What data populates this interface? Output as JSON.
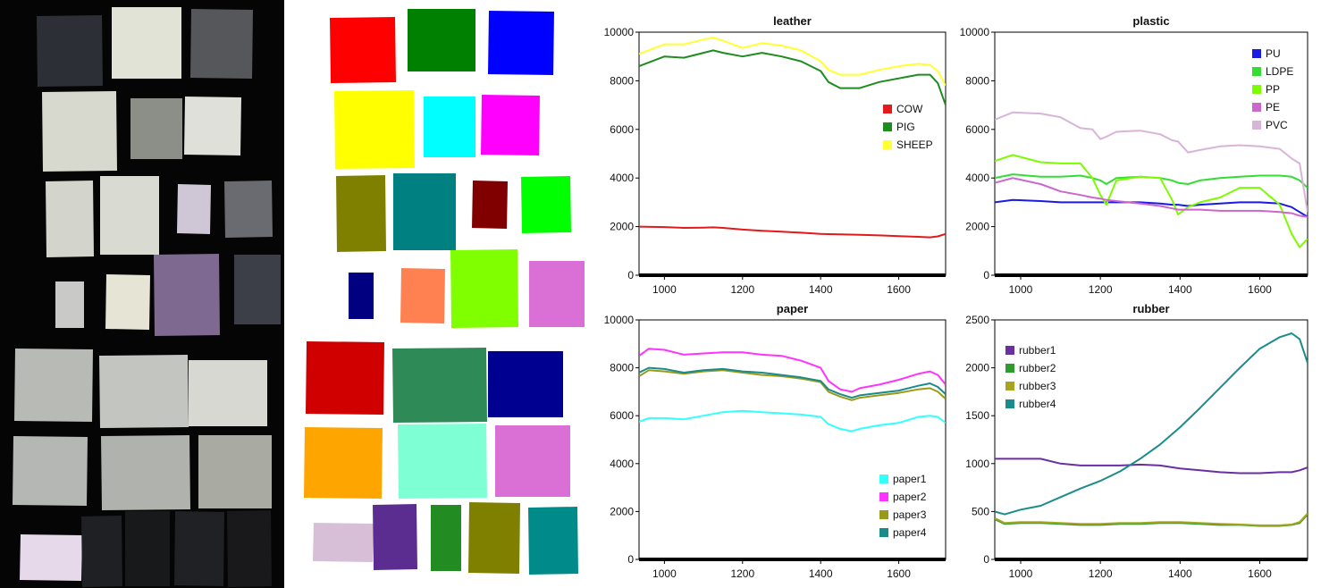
{
  "figure": {
    "photo_panel": "hyperspectral-sample-photo",
    "mask_panel": "segmentation-mask",
    "axis_color": "#000000",
    "background": "#ffffff"
  },
  "photo_samples": [
    {
      "color": "#2c2f35"
    },
    {
      "color": "#e2e3d7"
    },
    {
      "color": "#56575a"
    },
    {
      "color": "#d7d9cf"
    },
    {
      "color": "#8c8e88"
    },
    {
      "color": "#dfe0da"
    },
    {
      "color": "#d3d5cd"
    },
    {
      "color": "#d9dbd3"
    },
    {
      "color": "#cfc7d6"
    },
    {
      "color": "#6a6b70"
    },
    {
      "color": "#c9cac7"
    },
    {
      "color": "#e5e4d5"
    },
    {
      "color": "#7e6990"
    },
    {
      "color": "#3c3f48"
    },
    {
      "color": "#b8bab6"
    },
    {
      "color": "#c3c5c1"
    },
    {
      "color": "#d7d8d2"
    },
    {
      "color": "#b5b7b4"
    },
    {
      "color": "#b0b2ae"
    },
    {
      "color": "#a9aba2"
    },
    {
      "color": "#e5d9ea"
    },
    {
      "color": "#1f2024"
    },
    {
      "color": "#18191b"
    },
    {
      "color": "#202124"
    },
    {
      "color": "#19191b"
    }
  ],
  "mask_samples": [
    {
      "color": "#ff0000"
    },
    {
      "color": "#008000"
    },
    {
      "color": "#0000ff"
    },
    {
      "color": "#ffff00"
    },
    {
      "color": "#00ffff"
    },
    {
      "color": "#ff00ff"
    },
    {
      "color": "#808000"
    },
    {
      "color": "#008080"
    },
    {
      "color": "#800000"
    },
    {
      "color": "#00ff00"
    },
    {
      "color": "#000080"
    },
    {
      "color": "#ff8050"
    },
    {
      "color": "#80ff00"
    },
    {
      "color": "#da70d6"
    },
    {
      "color": "#d00000"
    },
    {
      "color": "#2e8b57"
    },
    {
      "color": "#000090"
    },
    {
      "color": "#ffa500"
    },
    {
      "color": "#7fffd4"
    },
    {
      "color": "#da70d6"
    },
    {
      "color": "#d8bfd8"
    },
    {
      "color": "#5c2d91"
    },
    {
      "color": "#228b22"
    },
    {
      "color": "#808000"
    },
    {
      "color": "#008b8b"
    }
  ],
  "chart_data": [
    {
      "type": "line",
      "title": "leather",
      "xlabel": "",
      "ylabel": "",
      "xlim": [
        935,
        1720
      ],
      "ylim": [
        0,
        10000
      ],
      "x_ticks": [
        1000,
        1200,
        1400,
        1600
      ],
      "y_ticks": [
        0,
        2000,
        4000,
        6000,
        8000,
        10000
      ],
      "legend_position": "right",
      "x": [
        935,
        1000,
        1050,
        1100,
        1125,
        1150,
        1200,
        1250,
        1300,
        1350,
        1400,
        1420,
        1450,
        1500,
        1550,
        1600,
        1650,
        1680,
        1700,
        1720
      ],
      "series": [
        {
          "name": "COW",
          "color": "#e31a1c",
          "values": [
            2000,
            1980,
            1950,
            1960,
            1970,
            1950,
            1880,
            1830,
            1790,
            1750,
            1700,
            1690,
            1680,
            1660,
            1640,
            1610,
            1580,
            1560,
            1600,
            1700
          ]
        },
        {
          "name": "PIG",
          "color": "#1e8c1e",
          "values": [
            8600,
            9000,
            8950,
            9150,
            9250,
            9150,
            9000,
            9150,
            9000,
            8800,
            8400,
            7950,
            7700,
            7700,
            7950,
            8100,
            8250,
            8250,
            7900,
            7000
          ]
        },
        {
          "name": "SHEEP",
          "color": "#ffff33",
          "values": [
            9100,
            9500,
            9500,
            9700,
            9780,
            9650,
            9350,
            9550,
            9450,
            9250,
            8800,
            8450,
            8250,
            8250,
            8450,
            8600,
            8700,
            8650,
            8400,
            7800
          ]
        }
      ]
    },
    {
      "type": "line",
      "title": "plastic",
      "xlabel": "",
      "ylabel": "",
      "xlim": [
        935,
        1720
      ],
      "ylim": [
        0,
        10000
      ],
      "x_ticks": [
        1000,
        1200,
        1400,
        1600
      ],
      "y_ticks": [
        0,
        2000,
        4000,
        6000,
        8000,
        10000
      ],
      "legend_position": "top-right",
      "x": [
        935,
        980,
        1050,
        1100,
        1150,
        1180,
        1200,
        1215,
        1240,
        1300,
        1350,
        1380,
        1395,
        1420,
        1450,
        1500,
        1550,
        1600,
        1650,
        1680,
        1700,
        1720
      ],
      "series": [
        {
          "name": "PU",
          "color": "#1a1ae6",
          "values": [
            3000,
            3100,
            3050,
            3000,
            3000,
            3000,
            3000,
            3000,
            3000,
            3000,
            2950,
            2900,
            2900,
            2850,
            2900,
            2950,
            3000,
            3000,
            2950,
            2800,
            2600,
            2400
          ]
        },
        {
          "name": "LDPE",
          "color": "#33dd33",
          "values": [
            4000,
            4150,
            4050,
            4050,
            4100,
            4000,
            3900,
            3750,
            4000,
            4050,
            4000,
            3900,
            3800,
            3750,
            3900,
            4000,
            4050,
            4100,
            4100,
            4050,
            3900,
            3600
          ]
        },
        {
          "name": "PP",
          "color": "#7cfc00",
          "values": [
            4700,
            4950,
            4650,
            4600,
            4600,
            4000,
            3300,
            2900,
            3900,
            4050,
            4000,
            3100,
            2500,
            2800,
            3000,
            3200,
            3600,
            3600,
            2900,
            1700,
            1150,
            1500
          ]
        },
        {
          "name": "PE",
          "color": "#cc66cc",
          "values": [
            3800,
            4000,
            3750,
            3450,
            3300,
            3200,
            3150,
            3100,
            3050,
            2950,
            2850,
            2750,
            2700,
            2700,
            2700,
            2650,
            2650,
            2650,
            2600,
            2550,
            2450,
            2400
          ]
        },
        {
          "name": "PVC",
          "color": "#d8b4d8",
          "values": [
            6400,
            6700,
            6650,
            6500,
            6050,
            6000,
            5600,
            5700,
            5900,
            5950,
            5800,
            5550,
            5500,
            5050,
            5150,
            5300,
            5350,
            5300,
            5200,
            4800,
            4600,
            2600
          ]
        }
      ]
    },
    {
      "type": "line",
      "title": "paper",
      "xlabel": "",
      "ylabel": "",
      "xlim": [
        935,
        1720
      ],
      "ylim": [
        0,
        10000
      ],
      "x_ticks": [
        1000,
        1200,
        1400,
        1600
      ],
      "y_ticks": [
        0,
        2000,
        4000,
        6000,
        8000,
        10000
      ],
      "legend_position": "bottom-right",
      "x": [
        935,
        960,
        1000,
        1050,
        1100,
        1150,
        1200,
        1250,
        1300,
        1350,
        1400,
        1420,
        1450,
        1480,
        1500,
        1550,
        1600,
        1650,
        1680,
        1700,
        1720
      ],
      "series": [
        {
          "name": "paper1",
          "color": "#33ffff",
          "values": [
            5750,
            5900,
            5900,
            5850,
            6000,
            6150,
            6200,
            6150,
            6100,
            6050,
            5950,
            5650,
            5450,
            5350,
            5450,
            5600,
            5700,
            5950,
            6000,
            5950,
            5700
          ]
        },
        {
          "name": "paper2",
          "color": "#ff33ff",
          "values": [
            8500,
            8800,
            8750,
            8550,
            8600,
            8650,
            8650,
            8550,
            8500,
            8300,
            8000,
            7450,
            7100,
            7000,
            7150,
            7300,
            7500,
            7750,
            7850,
            7700,
            7300
          ]
        },
        {
          "name": "paper3",
          "color": "#9a9a1a",
          "values": [
            7650,
            7900,
            7850,
            7750,
            7850,
            7900,
            7800,
            7700,
            7650,
            7550,
            7400,
            7000,
            6800,
            6650,
            6750,
            6850,
            6950,
            7100,
            7150,
            7000,
            6700
          ]
        },
        {
          "name": "paper4",
          "color": "#1a8a8a",
          "values": [
            7800,
            8000,
            7950,
            7800,
            7900,
            7950,
            7850,
            7800,
            7700,
            7600,
            7450,
            7100,
            6900,
            6750,
            6850,
            6950,
            7050,
            7250,
            7350,
            7200,
            6900
          ]
        }
      ]
    },
    {
      "type": "line",
      "title": "rubber",
      "xlabel": "",
      "ylabel": "",
      "xlim": [
        935,
        1720
      ],
      "ylim": [
        0,
        2500
      ],
      "x_ticks": [
        1000,
        1200,
        1400,
        1600
      ],
      "y_ticks": [
        0,
        500,
        1000,
        1500,
        2000,
        2500
      ],
      "legend_position": "top-left",
      "x": [
        935,
        960,
        1000,
        1050,
        1100,
        1150,
        1200,
        1250,
        1300,
        1350,
        1400,
        1450,
        1500,
        1550,
        1600,
        1650,
        1680,
        1700,
        1720
      ],
      "series": [
        {
          "name": "rubber1",
          "color": "#6a2fa0",
          "values": [
            1050,
            1050,
            1050,
            1050,
            1000,
            980,
            980,
            980,
            990,
            980,
            950,
            930,
            910,
            900,
            900,
            910,
            910,
            930,
            960
          ]
        },
        {
          "name": "rubber2",
          "color": "#2e9b2e",
          "values": [
            420,
            370,
            380,
            380,
            370,
            360,
            360,
            370,
            370,
            380,
            380,
            370,
            360,
            360,
            350,
            350,
            360,
            380,
            470
          ]
        },
        {
          "name": "rubber3",
          "color": "#a5a520",
          "values": [
            430,
            380,
            390,
            390,
            380,
            370,
            370,
            380,
            380,
            390,
            390,
            380,
            370,
            365,
            355,
            355,
            365,
            390,
            480
          ]
        },
        {
          "name": "rubber4",
          "color": "#1a8c8c",
          "values": [
            500,
            470,
            520,
            560,
            650,
            740,
            820,
            920,
            1050,
            1200,
            1380,
            1580,
            1790,
            2000,
            2200,
            2320,
            2360,
            2300,
            2050
          ]
        }
      ]
    }
  ]
}
